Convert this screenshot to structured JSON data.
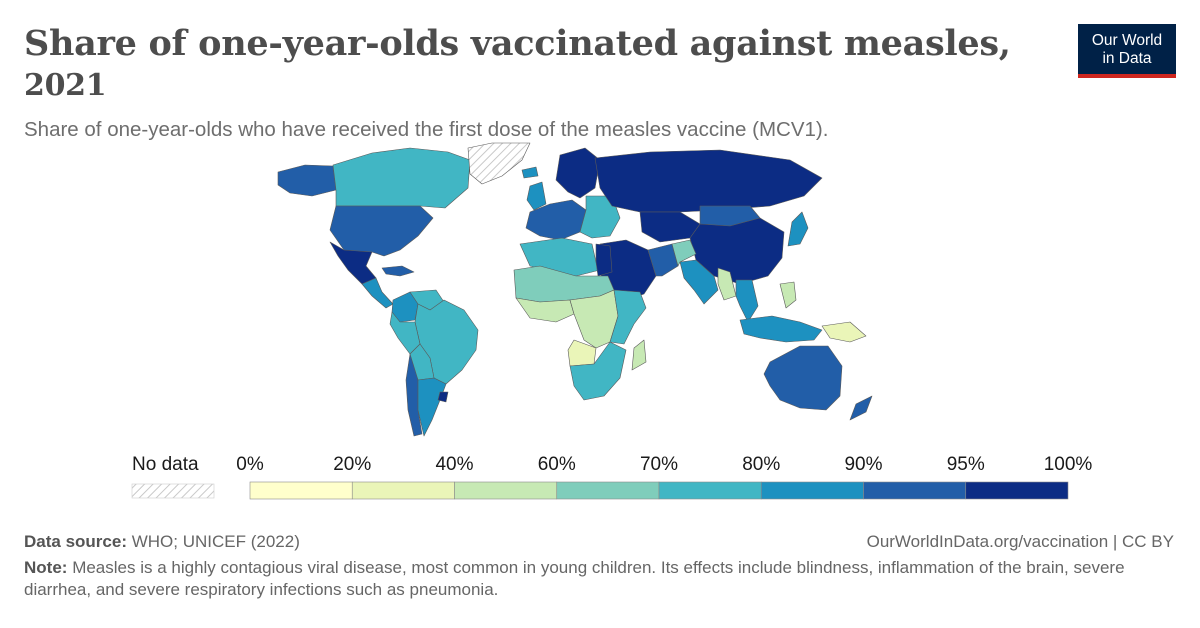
{
  "header": {
    "title_line1": "Share of one-year-olds vaccinated against measles,",
    "title_line2": "2021",
    "subtitle": "Share of one-year-olds who have received the first dose of the measles vaccine (MCV1).",
    "logo_line1": "Our World",
    "logo_line2": "in Data",
    "logo_bg_color": "#002147",
    "logo_accent_color": "#ce261e"
  },
  "legend": {
    "nodata_label": "No data",
    "bins": [
      {
        "from": "0%",
        "to": "20%",
        "color": "#ffffcc"
      },
      {
        "from": "20%",
        "to": "40%",
        "color": "#eaf5b8"
      },
      {
        "from": "40%",
        "to": "60%",
        "color": "#c7e9b4"
      },
      {
        "from": "60%",
        "to": "70%",
        "color": "#7fcdbb"
      },
      {
        "from": "70%",
        "to": "80%",
        "color": "#41b6c4"
      },
      {
        "from": "80%",
        "to": "90%",
        "color": "#1d91c0"
      },
      {
        "from": "90%",
        "to": "95%",
        "color": "#225ea8"
      },
      {
        "from": "95%",
        "to": "100%",
        "color": "#0c2c84"
      }
    ],
    "tick_labels": [
      "0%",
      "20%",
      "40%",
      "60%",
      "70%",
      "80%",
      "90%",
      "95%",
      "100%"
    ]
  },
  "regions": [
    {
      "name": "Alaska",
      "color": "#225ea8"
    },
    {
      "name": "Canada",
      "color": "#41b6c4"
    },
    {
      "name": "Greenland",
      "color": "nodata"
    },
    {
      "name": "United States",
      "color": "#225ea8"
    },
    {
      "name": "Mexico",
      "color": "#0c2c84"
    },
    {
      "name": "Central America",
      "color": "#1d91c0"
    },
    {
      "name": "Caribbean",
      "color": "#225ea8"
    },
    {
      "name": "Colombia",
      "color": "#1d91c0"
    },
    {
      "name": "Venezuela",
      "color": "#41b6c4"
    },
    {
      "name": "Brazil",
      "color": "#41b6c4"
    },
    {
      "name": "Peru",
      "color": "#41b6c4"
    },
    {
      "name": "Bolivia",
      "color": "#41b6c4"
    },
    {
      "name": "Chile",
      "color": "#225ea8"
    },
    {
      "name": "Argentina",
      "color": "#1d91c0"
    },
    {
      "name": "Uruguay",
      "color": "#0c2c84"
    },
    {
      "name": "Iceland",
      "color": "#1d91c0"
    },
    {
      "name": "Scandinavia",
      "color": "#0c2c84"
    },
    {
      "name": "United Kingdom",
      "color": "#1d91c0"
    },
    {
      "name": "Western Europe",
      "color": "#225ea8"
    },
    {
      "name": "Eastern Europe",
      "color": "#41b6c4"
    },
    {
      "name": "Russia",
      "color": "#0c2c84"
    },
    {
      "name": "Kazakhstan",
      "color": "#0c2c84"
    },
    {
      "name": "Mongolia",
      "color": "#225ea8"
    },
    {
      "name": "China",
      "color": "#0c2c84"
    },
    {
      "name": "Japan",
      "color": "#1d91c0"
    },
    {
      "name": "Middle East",
      "color": "#0c2c84"
    },
    {
      "name": "Iran",
      "color": "#225ea8"
    },
    {
      "name": "Afghanistan",
      "color": "#7fcdbb"
    },
    {
      "name": "India",
      "color": "#1d91c0"
    },
    {
      "name": "Myanmar",
      "color": "#c7e9b4"
    },
    {
      "name": "Indochina",
      "color": "#1d91c0"
    },
    {
      "name": "Philippines",
      "color": "#c7e9b4"
    },
    {
      "name": "Indonesia",
      "color": "#1d91c0"
    },
    {
      "name": "Papua New Guinea",
      "color": "#eaf5b8"
    },
    {
      "name": "Australia",
      "color": "#225ea8"
    },
    {
      "name": "New Zealand",
      "color": "#225ea8"
    },
    {
      "name": "North Africa",
      "color": "#41b6c4"
    },
    {
      "name": "Egypt",
      "color": "#0c2c84"
    },
    {
      "name": "Sahel",
      "color": "#7fcdbb"
    },
    {
      "name": "West Africa",
      "color": "#c7e9b4"
    },
    {
      "name": "Central Africa",
      "color": "#c7e9b4"
    },
    {
      "name": "Angola",
      "color": "#eaf5b8"
    },
    {
      "name": "East Africa",
      "color": "#41b6c4"
    },
    {
      "name": "Southern Africa",
      "color": "#41b6c4"
    },
    {
      "name": "Madagascar",
      "color": "#c7e9b4"
    }
  ],
  "footer": {
    "source_label": "Data source:",
    "source_text": "WHO; UNICEF (2022)",
    "url": "OurWorldInData.org/vaccination | CC BY",
    "note_label": "Note:",
    "note_text": "Measles is a highly contagious viral disease, most common in young children. Its effects include blindness, inflammation of the brain, severe diarrhea, and severe respiratory infections such as pneumonia."
  }
}
